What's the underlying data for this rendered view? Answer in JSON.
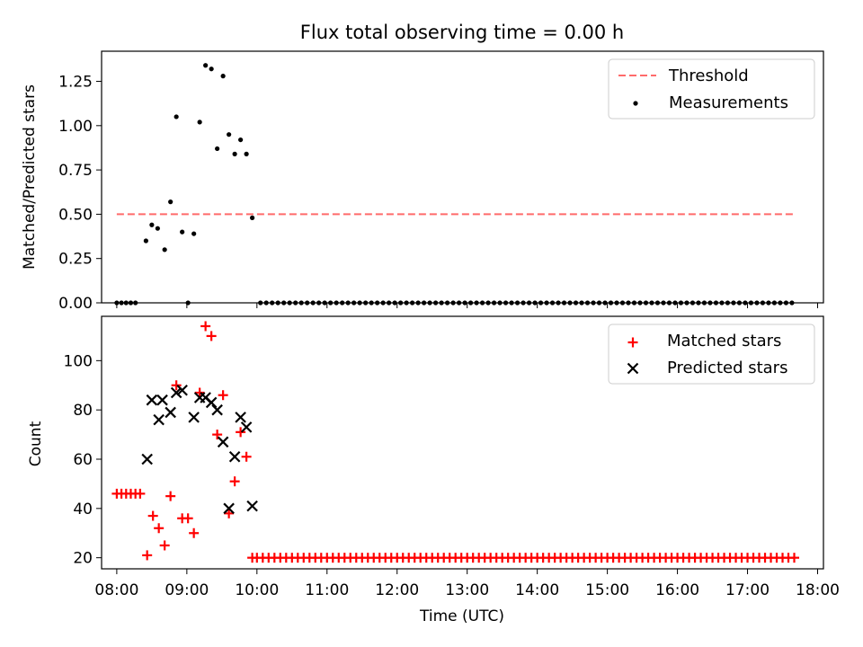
{
  "chart_data": [
    {
      "type": "scatter",
      "title": "Flux total observing time = 0.00 h",
      "xlabel": "",
      "ylabel": "Matched/Predicted stars",
      "xlim": [
        "07:47",
        "18:05"
      ],
      "ylim": [
        0,
        1.42
      ],
      "yticks": [
        "0.00",
        "0.25",
        "0.50",
        "0.75",
        "1.00",
        "1.25"
      ],
      "legend_position": "top-right",
      "threshold": {
        "name": "Threshold",
        "y": 0.5,
        "x_range": [
          "08:00",
          "17:40"
        ],
        "color": "#ff6b6b",
        "style": "dashed"
      },
      "series": [
        {
          "name": "Measurements",
          "color": "#000000",
          "marker": "dot",
          "points": [
            [
              "08:00",
              0
            ],
            [
              "08:04",
              0
            ],
            [
              "08:08",
              0
            ],
            [
              "08:12",
              0
            ],
            [
              "08:16",
              0
            ],
            [
              "08:25",
              0.35
            ],
            [
              "08:30",
              0.44
            ],
            [
              "08:35",
              0.42
            ],
            [
              "08:41",
              0.3
            ],
            [
              "08:46",
              0.57
            ],
            [
              "08:51",
              1.05
            ],
            [
              "08:56",
              0.4
            ],
            [
              "09:01",
              0
            ],
            [
              "09:06",
              0.39
            ],
            [
              "09:11",
              1.02
            ],
            [
              "09:16",
              1.34
            ],
            [
              "09:21",
              1.32
            ],
            [
              "09:26",
              0.87
            ],
            [
              "09:31",
              1.28
            ],
            [
              "09:36",
              0.95
            ],
            [
              "09:41",
              0.84
            ],
            [
              "09:46",
              0.92
            ],
            [
              "09:51",
              0.84
            ],
            [
              "09:56",
              0.48
            ],
            [
              "10:03",
              0
            ],
            [
              "10:08",
              0
            ],
            [
              "10:13",
              0
            ],
            [
              "10:18",
              0
            ],
            [
              "10:23",
              0
            ],
            [
              "10:28",
              0
            ],
            [
              "10:33",
              0
            ],
            [
              "10:38",
              0
            ],
            [
              "10:43",
              0
            ],
            [
              "10:48",
              0
            ],
            [
              "10:53",
              0
            ],
            [
              "10:58",
              0
            ],
            [
              "11:03",
              0
            ],
            [
              "11:08",
              0
            ],
            [
              "11:13",
              0
            ],
            [
              "11:18",
              0
            ],
            [
              "11:23",
              0
            ],
            [
              "11:28",
              0
            ],
            [
              "11:33",
              0
            ],
            [
              "11:38",
              0
            ],
            [
              "11:43",
              0
            ],
            [
              "11:48",
              0
            ],
            [
              "11:53",
              0
            ],
            [
              "11:58",
              0
            ],
            [
              "12:03",
              0
            ],
            [
              "12:08",
              0
            ],
            [
              "12:13",
              0
            ],
            [
              "12:18",
              0
            ],
            [
              "12:23",
              0
            ],
            [
              "12:28",
              0
            ],
            [
              "12:33",
              0
            ],
            [
              "12:38",
              0
            ],
            [
              "12:43",
              0
            ],
            [
              "12:48",
              0
            ],
            [
              "12:53",
              0
            ],
            [
              "12:58",
              0
            ],
            [
              "13:03",
              0
            ],
            [
              "13:08",
              0
            ],
            [
              "13:13",
              0
            ],
            [
              "13:18",
              0
            ],
            [
              "13:23",
              0
            ],
            [
              "13:28",
              0
            ],
            [
              "13:33",
              0
            ],
            [
              "13:38",
              0
            ],
            [
              "13:43",
              0
            ],
            [
              "13:48",
              0
            ],
            [
              "13:53",
              0
            ],
            [
              "13:58",
              0
            ],
            [
              "14:03",
              0
            ],
            [
              "14:08",
              0
            ],
            [
              "14:13",
              0
            ],
            [
              "14:18",
              0
            ],
            [
              "14:23",
              0
            ],
            [
              "14:28",
              0
            ],
            [
              "14:33",
              0
            ],
            [
              "14:38",
              0
            ],
            [
              "14:43",
              0
            ],
            [
              "14:48",
              0
            ],
            [
              "14:53",
              0
            ],
            [
              "14:58",
              0
            ],
            [
              "15:03",
              0
            ],
            [
              "15:08",
              0
            ],
            [
              "15:13",
              0
            ],
            [
              "15:18",
              0
            ],
            [
              "15:23",
              0
            ],
            [
              "15:28",
              0
            ],
            [
              "15:33",
              0
            ],
            [
              "15:38",
              0
            ],
            [
              "15:43",
              0
            ],
            [
              "15:48",
              0
            ],
            [
              "15:53",
              0
            ],
            [
              "15:58",
              0
            ],
            [
              "16:03",
              0
            ],
            [
              "16:08",
              0
            ],
            [
              "16:13",
              0
            ],
            [
              "16:18",
              0
            ],
            [
              "16:23",
              0
            ],
            [
              "16:28",
              0
            ],
            [
              "16:33",
              0
            ],
            [
              "16:38",
              0
            ],
            [
              "16:43",
              0
            ],
            [
              "16:48",
              0
            ],
            [
              "16:53",
              0
            ],
            [
              "16:58",
              0
            ],
            [
              "17:03",
              0
            ],
            [
              "17:08",
              0
            ],
            [
              "17:13",
              0
            ],
            [
              "17:18",
              0
            ],
            [
              "17:23",
              0
            ],
            [
              "17:28",
              0
            ],
            [
              "17:33",
              0
            ],
            [
              "17:38",
              0
            ]
          ]
        }
      ]
    },
    {
      "type": "scatter",
      "title": "",
      "xlabel": "Time (UTC)",
      "ylabel": "Count",
      "xlim": [
        "07:47",
        "18:05"
      ],
      "ylim": [
        15.5,
        118
      ],
      "yticks": [
        "20",
        "40",
        "60",
        "80",
        "100"
      ],
      "xticks": [
        "08:00",
        "09:00",
        "10:00",
        "11:00",
        "12:00",
        "13:00",
        "14:00",
        "15:00",
        "16:00",
        "17:00",
        "18:00"
      ],
      "legend_position": "top-right",
      "series": [
        {
          "name": "Matched stars",
          "color": "#ff0000",
          "marker": "plus",
          "points": [
            [
              "08:00",
              46
            ],
            [
              "08:04",
              46
            ],
            [
              "08:08",
              46
            ],
            [
              "08:12",
              46
            ],
            [
              "08:16",
              46
            ],
            [
              "08:20",
              46
            ],
            [
              "08:26",
              21
            ],
            [
              "08:31",
              37
            ],
            [
              "08:36",
              32
            ],
            [
              "08:41",
              25
            ],
            [
              "08:46",
              45
            ],
            [
              "08:51",
              90
            ],
            [
              "08:56",
              36
            ],
            [
              "09:01",
              36
            ],
            [
              "09:06",
              30
            ],
            [
              "09:11",
              87
            ],
            [
              "09:16",
              114
            ],
            [
              "09:21",
              110
            ],
            [
              "09:26",
              70
            ],
            [
              "09:31",
              86
            ],
            [
              "09:36",
              38
            ],
            [
              "09:41",
              51
            ],
            [
              "09:46",
              71
            ],
            [
              "09:51",
              61
            ],
            [
              "09:56",
              20
            ],
            [
              "10:00",
              20
            ],
            [
              "10:05",
              20
            ],
            [
              "10:10",
              20
            ],
            [
              "10:15",
              20
            ],
            [
              "10:20",
              20
            ],
            [
              "10:25",
              20
            ],
            [
              "10:30",
              20
            ],
            [
              "10:35",
              20
            ],
            [
              "10:40",
              20
            ],
            [
              "10:45",
              20
            ],
            [
              "10:50",
              20
            ],
            [
              "10:55",
              20
            ],
            [
              "11:00",
              20
            ],
            [
              "11:05",
              20
            ],
            [
              "11:10",
              20
            ],
            [
              "11:15",
              20
            ],
            [
              "11:20",
              20
            ],
            [
              "11:25",
              20
            ],
            [
              "11:30",
              20
            ],
            [
              "11:35",
              20
            ],
            [
              "11:40",
              20
            ],
            [
              "11:45",
              20
            ],
            [
              "11:50",
              20
            ],
            [
              "11:55",
              20
            ],
            [
              "12:00",
              20
            ],
            [
              "12:05",
              20
            ],
            [
              "12:10",
              20
            ],
            [
              "12:15",
              20
            ],
            [
              "12:20",
              20
            ],
            [
              "12:25",
              20
            ],
            [
              "12:30",
              20
            ],
            [
              "12:35",
              20
            ],
            [
              "12:40",
              20
            ],
            [
              "12:45",
              20
            ],
            [
              "12:50",
              20
            ],
            [
              "12:55",
              20
            ],
            [
              "13:00",
              20
            ],
            [
              "13:05",
              20
            ],
            [
              "13:10",
              20
            ],
            [
              "13:15",
              20
            ],
            [
              "13:20",
              20
            ],
            [
              "13:25",
              20
            ],
            [
              "13:30",
              20
            ],
            [
              "13:35",
              20
            ],
            [
              "13:40",
              20
            ],
            [
              "13:45",
              20
            ],
            [
              "13:50",
              20
            ],
            [
              "13:55",
              20
            ],
            [
              "14:00",
              20
            ],
            [
              "14:05",
              20
            ],
            [
              "14:10",
              20
            ],
            [
              "14:15",
              20
            ],
            [
              "14:20",
              20
            ],
            [
              "14:25",
              20
            ],
            [
              "14:30",
              20
            ],
            [
              "14:35",
              20
            ],
            [
              "14:40",
              20
            ],
            [
              "14:45",
              20
            ],
            [
              "14:50",
              20
            ],
            [
              "14:55",
              20
            ],
            [
              "15:00",
              20
            ],
            [
              "15:05",
              20
            ],
            [
              "15:10",
              20
            ],
            [
              "15:15",
              20
            ],
            [
              "15:20",
              20
            ],
            [
              "15:25",
              20
            ],
            [
              "15:30",
              20
            ],
            [
              "15:35",
              20
            ],
            [
              "15:40",
              20
            ],
            [
              "15:45",
              20
            ],
            [
              "15:50",
              20
            ],
            [
              "15:55",
              20
            ],
            [
              "16:00",
              20
            ],
            [
              "16:05",
              20
            ],
            [
              "16:10",
              20
            ],
            [
              "16:15",
              20
            ],
            [
              "16:20",
              20
            ],
            [
              "16:25",
              20
            ],
            [
              "16:30",
              20
            ],
            [
              "16:35",
              20
            ],
            [
              "16:40",
              20
            ],
            [
              "16:45",
              20
            ],
            [
              "16:50",
              20
            ],
            [
              "16:55",
              20
            ],
            [
              "17:00",
              20
            ],
            [
              "17:05",
              20
            ],
            [
              "17:10",
              20
            ],
            [
              "17:15",
              20
            ],
            [
              "17:20",
              20
            ],
            [
              "17:25",
              20
            ],
            [
              "17:30",
              20
            ],
            [
              "17:35",
              20
            ],
            [
              "17:40",
              20
            ]
          ]
        },
        {
          "name": "Predicted stars",
          "color": "#000000",
          "marker": "x",
          "points": [
            [
              "08:26",
              60
            ],
            [
              "08:30",
              84
            ],
            [
              "08:36",
              76
            ],
            [
              "08:39",
              84
            ],
            [
              "08:46",
              79
            ],
            [
              "08:51",
              87
            ],
            [
              "08:56",
              88
            ],
            [
              "09:06",
              77
            ],
            [
              "09:11",
              85
            ],
            [
              "09:16",
              85
            ],
            [
              "09:21",
              83
            ],
            [
              "09:26",
              80
            ],
            [
              "09:31",
              67
            ],
            [
              "09:36",
              40
            ],
            [
              "09:41",
              61
            ],
            [
              "09:46",
              77
            ],
            [
              "09:51",
              73
            ],
            [
              "09:56",
              41
            ]
          ]
        }
      ]
    }
  ]
}
